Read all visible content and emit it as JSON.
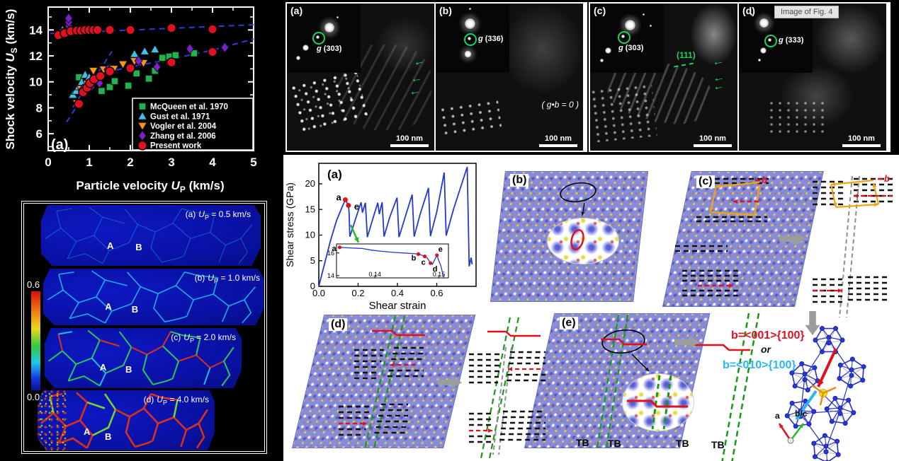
{
  "colors": {
    "background": "#000000",
    "accent_green": "#19d25f",
    "tb_green": "#169a16",
    "red": "#e01020",
    "cyan": "#29b6f6",
    "orange_circuit": "#f3a311",
    "curve_blue": "#2238d4",
    "dash_blue": "#2b3cdc",
    "gray_line": "#8f8f8f"
  },
  "chart_data": [
    {
      "type": "scatter",
      "panel_label": "(a)",
      "xlabel_parts": [
        "Particle velocity ",
        "U",
        "P",
        " (km/s)"
      ],
      "ylabel_parts": [
        "Shock velocity ",
        "U",
        "S",
        " (km/s)"
      ],
      "xlim": [
        0,
        5
      ],
      "ylim": [
        4.7,
        15.8
      ],
      "xticks": [
        0,
        1,
        2,
        3,
        4,
        5
      ],
      "yticks": [
        6,
        8,
        10,
        12,
        14
      ],
      "legend_position": "lower right",
      "series": [
        {
          "name": "McQueen et al. 1970",
          "marker": "square",
          "color": "#22b14c",
          "points": [
            [
              0.75,
              10.35
            ],
            [
              1.3,
              9.3
            ],
            [
              1.5,
              9.6
            ],
            [
              1.62,
              10.05
            ],
            [
              1.95,
              9.7
            ],
            [
              2.15,
              10.65
            ],
            [
              2.45,
              10.25
            ],
            [
              2.6,
              10.85
            ],
            [
              2.78,
              11.85
            ],
            [
              2.95,
              11.95
            ],
            [
              3.1,
              12.05
            ],
            [
              3.55,
              12.2
            ]
          ]
        },
        {
          "name": "Gust et al. 1971",
          "marker": "triangle_up",
          "color": "#3fc1ee",
          "points": [
            [
              0.35,
              14.0
            ],
            [
              0.6,
              9.0
            ],
            [
              0.68,
              9.3
            ],
            [
              0.75,
              9.65
            ],
            [
              0.82,
              10.0
            ],
            [
              0.9,
              10.55
            ],
            [
              1.0,
              10.35
            ],
            [
              1.12,
              10.1
            ],
            [
              1.25,
              10.45
            ],
            [
              1.5,
              11.05
            ],
            [
              2.1,
              12.15
            ],
            [
              2.35,
              12.35
            ],
            [
              2.6,
              12.5
            ]
          ]
        },
        {
          "name": "Vogler et al. 2004",
          "marker": "triangle_down",
          "color": "#f7941e",
          "points": [
            [
              0.42,
              13.85
            ],
            [
              0.7,
              8.35
            ],
            [
              0.8,
              9.45
            ],
            [
              0.95,
              9.85
            ],
            [
              1.1,
              10.85
            ],
            [
              1.35,
              10.95
            ],
            [
              1.6,
              11.0
            ],
            [
              1.82,
              11.35
            ],
            [
              2.1,
              11.6
            ],
            [
              2.32,
              11.45
            ]
          ]
        },
        {
          "name": "Zhang et al. 2006",
          "marker": "diamond",
          "color": "#7d1fd1",
          "points": [
            [
              0.5,
              13.95
            ],
            [
              0.5,
              14.3
            ],
            [
              0.5,
              14.6
            ],
            [
              0.5,
              14.9
            ],
            [
              0.85,
              9.45
            ],
            [
              1.05,
              9.65
            ],
            [
              1.25,
              9.9
            ],
            [
              1.45,
              10.95
            ],
            [
              2.2,
              11.62
            ],
            [
              2.65,
              11.15
            ],
            [
              3.45,
              12.55
            ],
            [
              4.3,
              12.65
            ]
          ]
        },
        {
          "name": "Present work",
          "marker": "circle",
          "color": "#e01020",
          "points": [
            [
              0.25,
              13.6
            ],
            [
              0.4,
              13.75
            ],
            [
              0.55,
              13.9
            ],
            [
              0.7,
              13.95
            ],
            [
              0.8,
              13.95
            ],
            [
              0.9,
              14.0
            ],
            [
              1.0,
              14.0
            ],
            [
              1.1,
              14.0
            ],
            [
              1.2,
              14.0
            ],
            [
              1.5,
              14.0
            ],
            [
              2.0,
              14.0
            ],
            [
              3.0,
              14.15
            ],
            [
              4.0,
              14.05
            ],
            [
              0.75,
              8.3
            ],
            [
              0.85,
              9.2
            ],
            [
              0.95,
              9.55
            ],
            [
              1.02,
              9.9
            ],
            [
              1.12,
              10.2
            ],
            [
              1.27,
              10.45
            ],
            [
              1.5,
              10.8
            ],
            [
              2.0,
              11.05
            ],
            [
              3.0,
              11.5
            ],
            [
              4.0,
              12.3
            ]
          ]
        }
      ],
      "fit_lines": [
        {
          "style": "dashed",
          "points": [
            [
              0.05,
              13.72
            ],
            [
              5,
              14.4
            ]
          ]
        },
        {
          "style": "dashed",
          "points": [
            [
              0.45,
              6.9
            ],
            [
              1.55,
              12.35
            ]
          ]
        },
        {
          "style": "dashed",
          "points": [
            [
              0.6,
              8.05
            ],
            [
              1.0,
              9.95
            ],
            [
              1.5,
              10.8
            ],
            [
              2.0,
              11.15
            ],
            [
              3.0,
              11.75
            ],
            [
              4.0,
              12.45
            ],
            [
              5.0,
              13.3
            ]
          ]
        }
      ]
    },
    {
      "type": "line",
      "panel_label": "(a)",
      "xlabel": "Shear strain",
      "ylabel": "Shear stress (GPa)",
      "xlim": [
        0,
        0.8
      ],
      "ylim": [
        0,
        24
      ],
      "xticks": [
        0.0,
        0.2,
        0.4,
        0.6
      ],
      "yticks": [
        0,
        5,
        10,
        15,
        20
      ],
      "curve": [
        [
          0,
          0
        ],
        [
          0.03,
          4.5
        ],
        [
          0.06,
          9
        ],
        [
          0.09,
          12.8
        ],
        [
          0.12,
          15.6
        ],
        [
          0.135,
          16.9
        ],
        [
          0.148,
          16.0
        ],
        [
          0.151,
          15.8
        ],
        [
          0.154,
          14.5
        ],
        [
          0.158,
          9.7
        ],
        [
          0.19,
          13.5
        ],
        [
          0.215,
          16.4
        ],
        [
          0.222,
          14.4
        ],
        [
          0.237,
          16.3
        ],
        [
          0.247,
          9.6
        ],
        [
          0.275,
          13.2
        ],
        [
          0.3,
          16.3
        ],
        [
          0.308,
          14.1
        ],
        [
          0.322,
          16.4
        ],
        [
          0.332,
          9.7
        ],
        [
          0.36,
          13.4
        ],
        [
          0.398,
          17.3
        ],
        [
          0.408,
          9.6
        ],
        [
          0.44,
          13.6
        ],
        [
          0.475,
          17.9
        ],
        [
          0.485,
          9.7
        ],
        [
          0.515,
          14.0
        ],
        [
          0.558,
          19.2
        ],
        [
          0.568,
          9.8
        ],
        [
          0.6,
          14.5
        ],
        [
          0.638,
          22.2
        ],
        [
          0.648,
          9.9
        ],
        [
          0.685,
          15.0
        ],
        [
          0.755,
          23.3
        ],
        [
          0.765,
          3.9
        ],
        [
          0.775,
          5.6
        ],
        [
          0.78,
          4.3
        ]
      ],
      "marked_points": [
        {
          "label": "a",
          "x": 0.135,
          "y": 16.9
        },
        {
          "label": "e",
          "x": 0.151,
          "y": 15.8
        }
      ],
      "inset": {
        "xlim": [
          0.134,
          0.1515
        ],
        "ylim": [
          13.8,
          16.8
        ],
        "xticks": [
          0.14,
          0.15
        ],
        "yticks": [
          14,
          16
        ],
        "curve": [
          [
            0.1345,
            16.5
          ],
          [
            0.136,
            16.45
          ],
          [
            0.138,
            16.4
          ],
          [
            0.1395,
            16.25
          ],
          [
            0.141,
            16.15
          ],
          [
            0.143,
            16.05
          ],
          [
            0.1445,
            16.0
          ],
          [
            0.146,
            15.95
          ],
          [
            0.1468,
            15.9
          ],
          [
            0.1476,
            15.75
          ],
          [
            0.1482,
            15.55
          ],
          [
            0.1487,
            15.1
          ],
          [
            0.149,
            15.0
          ],
          [
            0.1493,
            15.35
          ],
          [
            0.1497,
            15.8
          ],
          [
            0.15,
            15.3
          ],
          [
            0.1503,
            14.9
          ],
          [
            0.1506,
            14.2
          ],
          [
            0.1508,
            13.8
          ]
        ],
        "marked_points": [
          {
            "label": "a",
            "x": 0.1345,
            "y": 16.5
          },
          {
            "label": "b",
            "x": 0.1468,
            "y": 15.9
          },
          {
            "label": "c",
            "x": 0.1478,
            "y": 15.7
          },
          {
            "label": "d",
            "x": 0.1487,
            "y": 15.1
          },
          {
            "label": "e",
            "x": 0.1497,
            "y": 15.8
          }
        ]
      }
    }
  ],
  "grain_maps": {
    "colorbar": {
      "max": "0.6",
      "min": "0.0"
    },
    "panels": [
      {
        "letter": "(a)",
        "symbol": "U",
        "sub": "P",
        "value": "= 0.5 km/s",
        "region_a": "A",
        "region_b": "B"
      },
      {
        "letter": "(b)",
        "symbol": "U",
        "sub": "P",
        "value": "= 1.0 km/s",
        "region_a": "A",
        "region_b": "B"
      },
      {
        "letter": "(c)",
        "symbol": "U",
        "sub": "P",
        "value": "= 2.0 km/s",
        "region_a": "A",
        "region_b": "B"
      },
      {
        "letter": "(d)",
        "symbol": "U",
        "sub": "P",
        "value": "= 4.0 km/s",
        "region_a": "A",
        "region_b": "B"
      }
    ]
  },
  "tem": {
    "panels": [
      {
        "letter": "(a)",
        "g": "g",
        "index": "(303)",
        "scalebar": "100 nm"
      },
      {
        "letter": "(b)",
        "g": "g",
        "index": "(336)",
        "scalebar": "100 nm",
        "note": "( g•b = 0 )"
      },
      {
        "letter": "(c)",
        "g": "g",
        "index": "(303)",
        "scalebar": "100 nm",
        "plane": "(111)"
      },
      {
        "letter": "(d)",
        "g": "g",
        "index": "(333)",
        "scalebar": "100 nm",
        "overlay_label": "Image of Fig. 4"
      }
    ]
  },
  "md": {
    "labels": {
      "b": "(b)",
      "c": "(c)",
      "d": "(d)",
      "e": "(e)"
    },
    "burgers": "b",
    "tb": "TB",
    "slip1": "b=<001>{100}",
    "or_text": "or",
    "slip2": "b=<010>{100}",
    "axis_a": "a",
    "axis_bc": "b/c"
  }
}
